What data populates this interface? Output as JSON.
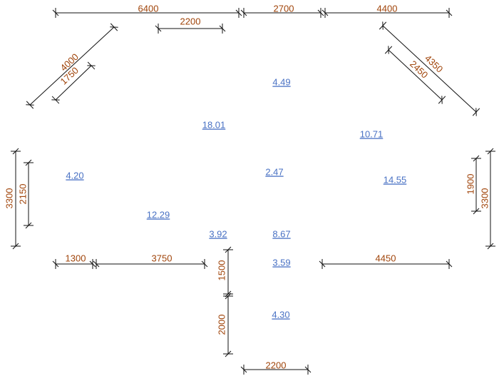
{
  "dimensions": [
    "6400",
    "2700",
    "4400",
    "2200",
    "4000",
    "1750",
    "4350",
    "2450",
    "3300",
    "2150",
    "3300",
    "1900",
    "1300",
    "3750",
    "4450",
    "1500",
    "2000",
    "2200"
  ],
  "areas": [
    "4.49",
    "18.01",
    "10.71",
    "4.20",
    "2.47",
    "14.55",
    "12.29",
    "3.92",
    "8.67",
    "3.59",
    "4.30"
  ]
}
